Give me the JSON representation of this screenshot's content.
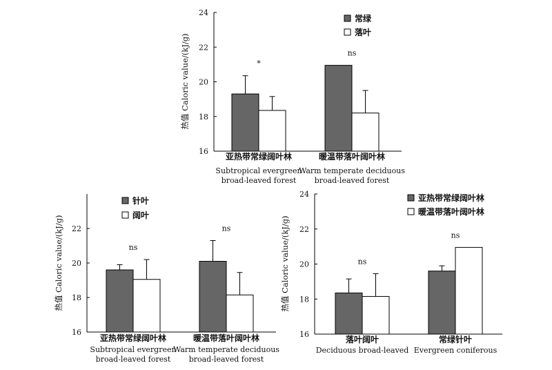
{
  "chart_data": [
    {
      "type": "bar",
      "ylabel": "热值 Caloric value/(kJ/g)",
      "ylim": [
        16,
        24
      ],
      "yticks": [
        "16",
        "18",
        "20",
        "22",
        "24"
      ],
      "categories": [
        {
          "zh": "亚热带常绿阔叶林",
          "en1": "Subtropical evergreen",
          "en2": "broad-leaved forest"
        },
        {
          "zh": "暖温带落叶阔叶林",
          "en1": "Warm temperate deciduous",
          "en2": "broad-leaved forest"
        }
      ],
      "series": [
        {
          "name": "常绿",
          "color": "#666666",
          "values": [
            19.3,
            20.95
          ],
          "errors": [
            1.05,
            null
          ]
        },
        {
          "name": "落叶",
          "color": "#ffffff",
          "values": [
            18.35,
            18.2
          ],
          "errors": [
            0.8,
            1.3
          ]
        }
      ],
      "significance": [
        "*",
        "ns"
      ],
      "legend": "top-right"
    },
    {
      "type": "bar",
      "ylabel": "热值 Caloric value/(kJ/g)",
      "ylim": [
        16,
        24
      ],
      "yticks": [
        "16",
        "18",
        "20",
        "22"
      ],
      "categories": [
        {
          "zh": "亚热带常绿阔叶林",
          "en1": "Subtropical evergreen",
          "en2": "broad-leaved forest"
        },
        {
          "zh": "暖温带落叶阔叶林",
          "en1": "Warm temperate deciduous",
          "en2": "broad-leaved forest"
        }
      ],
      "series": [
        {
          "name": "针叶",
          "color": "#666666",
          "values": [
            19.6,
            20.1
          ],
          "errors": [
            0.3,
            1.2
          ]
        },
        {
          "name": "阔叶",
          "color": "#ffffff",
          "values": [
            19.05,
            18.15
          ],
          "errors": [
            1.15,
            1.3
          ]
        }
      ],
      "significance": [
        "ns",
        "ns"
      ],
      "legend": "top-left"
    },
    {
      "type": "bar",
      "ylabel": "热值 Caloric value/(kJ/g)",
      "ylim": [
        16,
        24
      ],
      "yticks": [
        "16",
        "18",
        "20",
        "22",
        "24"
      ],
      "categories": [
        {
          "zh": "落叶阔叶",
          "en1": "Deciduous broad-leaved",
          "en2": ""
        },
        {
          "zh": "常绿针叶",
          "en1": "Evergreen coniferous",
          "en2": ""
        }
      ],
      "series": [
        {
          "name": "亚热带常绿阔叶林",
          "color": "#666666",
          "values": [
            18.35,
            19.6
          ],
          "errors": [
            0.8,
            0.3
          ]
        },
        {
          "name": "暖温带落叶阔叶林",
          "color": "#ffffff",
          "values": [
            18.15,
            20.95
          ],
          "errors": [
            1.3,
            null
          ]
        }
      ],
      "significance": [
        "ns",
        "ns"
      ],
      "legend": "top-right"
    }
  ]
}
